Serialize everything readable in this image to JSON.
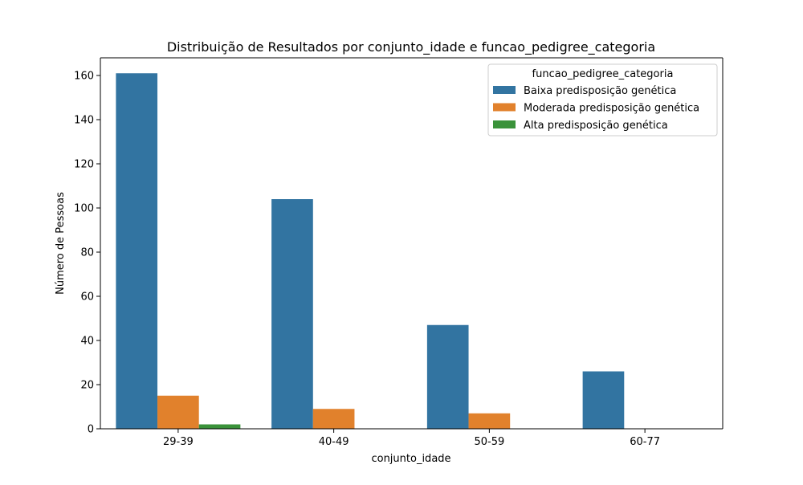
{
  "chart_data": {
    "type": "bar",
    "title": "Distribuição de Resultados por conjunto_idade e funcao_pedigree_categoria",
    "xlabel": "conjunto_idade",
    "ylabel": "Número de Pessoas",
    "categories": [
      "29-39",
      "40-49",
      "50-59",
      "60-77"
    ],
    "ylim": [
      0,
      168
    ],
    "yticks": [
      0,
      20,
      40,
      60,
      80,
      100,
      120,
      140,
      160
    ],
    "grid": false,
    "legend": {
      "title": "funcao_pedigree_categoria",
      "placement": "top-right"
    },
    "series": [
      {
        "name": "Baixa predisposição genética",
        "color": "#3274a1",
        "values": [
          161,
          104,
          47,
          26
        ]
      },
      {
        "name": "Moderada predisposição genética",
        "color": "#e1812c",
        "values": [
          15,
          9,
          7,
          0
        ]
      },
      {
        "name": "Alta predisposição genética",
        "color": "#3a923a",
        "values": [
          2,
          0,
          0,
          0
        ]
      }
    ]
  }
}
